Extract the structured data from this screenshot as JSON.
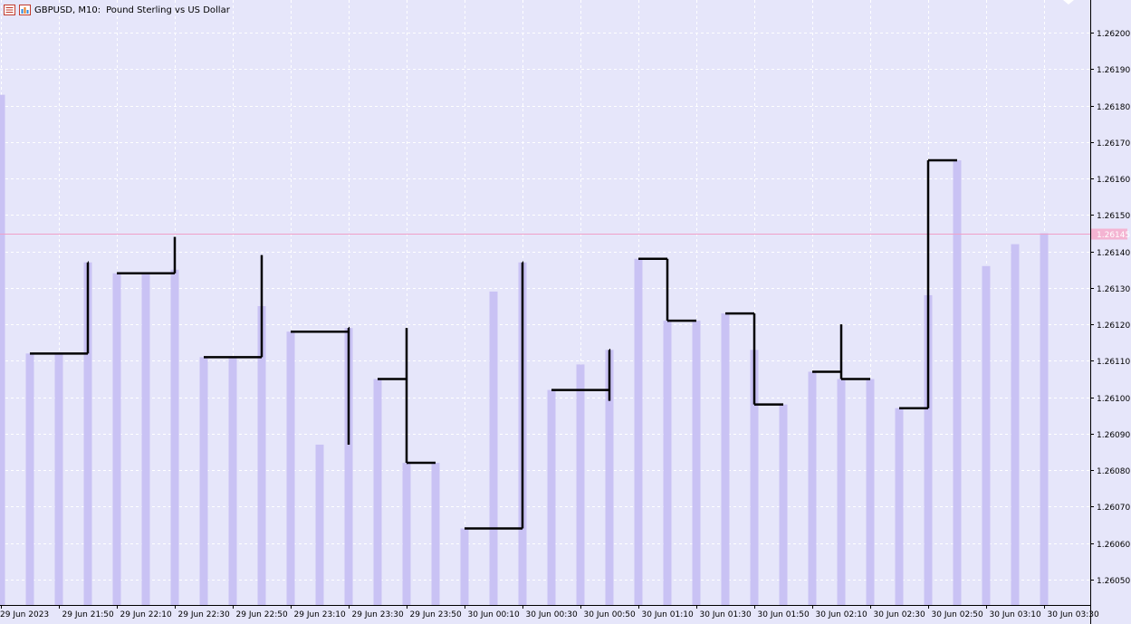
{
  "window": {
    "symbol_label": "GBPUSD, M10:",
    "description": "Pound Sterling vs US Dollar",
    "icons": [
      "list-icon",
      "chart-icon"
    ]
  },
  "colors": {
    "background": "#e6e6fa",
    "grid": "#ffffff",
    "volume_bar": "#c9c2f4",
    "step_line": "#000000",
    "bid_line": "#f0a0c8",
    "bid_label_bg": "#f4b4d2",
    "axis": "#000000"
  },
  "chart_data": {
    "type": "line",
    "title": "GBPUSD, M10:  Pound Sterling vs US Dollar",
    "ylim": [
      1.26043,
      1.26209
    ],
    "y_ticks": [
      "1.26200",
      "1.26190",
      "1.26180",
      "1.26170",
      "1.26160",
      "1.26150",
      "1.26140",
      "1.26130",
      "1.26120",
      "1.26110",
      "1.26100",
      "1.26090",
      "1.26080",
      "1.26070",
      "1.26060",
      "1.26050"
    ],
    "current_price": "1.26145",
    "x_labels": [
      "29 Jun 2023",
      "29 Jun 21:50",
      "29 Jun 22:10",
      "29 Jun 22:30",
      "29 Jun 22:50",
      "29 Jun 23:10",
      "29 Jun 23:30",
      "29 Jun 23:50",
      "30 Jun 00:10",
      "30 Jun 00:30",
      "30 Jun 00:50",
      "30 Jun 01:10",
      "30 Jun 01:30",
      "30 Jun 01:50",
      "30 Jun 02:10",
      "30 Jun 02:30",
      "30 Jun 02:50",
      "30 Jun 03:10",
      "30 Jun 03:30"
    ],
    "bars": [
      1.26183,
      1.26112,
      1.26112,
      1.26137,
      1.26134,
      1.26134,
      1.26135,
      1.26111,
      1.26111,
      1.26125,
      1.26118,
      1.26087,
      1.26119,
      1.26105,
      1.26082,
      1.26082,
      1.26064,
      1.26129,
      1.26137,
      1.26102,
      1.26109,
      1.26113,
      1.26138,
      1.26121,
      1.26121,
      1.26123,
      1.26113,
      1.26098,
      1.26107,
      1.26105,
      1.26105,
      1.26097,
      1.26128,
      1.26165,
      1.26136,
      1.26142,
      1.26145
    ],
    "step_segments": [
      {
        "from": 1,
        "to": 2,
        "open": 1.26112,
        "close": 1.26112,
        "high": 1.26112,
        "low": 1.26112
      },
      {
        "from": 2,
        "to": 3,
        "open": 1.26112,
        "close": 1.26137,
        "high": 1.26137,
        "low": 1.26112
      },
      {
        "from": 4,
        "to": 5,
        "open": 1.26134,
        "close": 1.26134,
        "high": 1.26134,
        "low": 1.26134
      },
      {
        "from": 5,
        "to": 6,
        "open": 1.26134,
        "close": 1.26135,
        "high": 1.26144,
        "low": 1.26134
      },
      {
        "from": 7,
        "to": 8,
        "open": 1.26111,
        "close": 1.26111,
        "high": 1.26111,
        "low": 1.26111
      },
      {
        "from": 8,
        "to": 9,
        "open": 1.26111,
        "close": 1.26125,
        "high": 1.26139,
        "low": 1.26111
      },
      {
        "from": 10,
        "to": 11,
        "open": 1.26118,
        "close": 1.26118,
        "high": 1.26118,
        "low": 1.26118
      },
      {
        "from": 11,
        "to": 12,
        "open": 1.26118,
        "close": 1.26119,
        "high": 1.26119,
        "low": 1.26087
      },
      {
        "from": 13,
        "to": 14,
        "open": 1.26105,
        "close": 1.26082,
        "high": 1.26119,
        "low": 1.26082
      },
      {
        "from": 14,
        "to": 15,
        "open": 1.26082,
        "close": 1.26082,
        "high": 1.26082,
        "low": 1.26082
      },
      {
        "from": 16,
        "to": 17,
        "open": 1.26064,
        "close": 1.26064,
        "high": 1.26064,
        "low": 1.26064
      },
      {
        "from": 17,
        "to": 18,
        "open": 1.26064,
        "close": 1.26137,
        "high": 1.26137,
        "low": 1.26064
      },
      {
        "from": 19,
        "to": 20,
        "open": 1.26102,
        "close": 1.26102,
        "high": 1.26102,
        "low": 1.26102
      },
      {
        "from": 20,
        "to": 21,
        "open": 1.26102,
        "close": 1.26113,
        "high": 1.26113,
        "low": 1.26099
      },
      {
        "from": 22,
        "to": 23,
        "open": 1.26138,
        "close": 1.26121,
        "high": 1.26138,
        "low": 1.26121
      },
      {
        "from": 23,
        "to": 24,
        "open": 1.26121,
        "close": 1.26121,
        "high": 1.26121,
        "low": 1.26121
      },
      {
        "from": 25,
        "to": 26,
        "open": 1.26123,
        "close": 1.26098,
        "high": 1.26123,
        "low": 1.26098
      },
      {
        "from": 26,
        "to": 27,
        "open": 1.26098,
        "close": 1.26098,
        "high": 1.26098,
        "low": 1.26098
      },
      {
        "from": 28,
        "to": 29,
        "open": 1.26107,
        "close": 1.26105,
        "high": 1.2612,
        "low": 1.26105
      },
      {
        "from": 29,
        "to": 30,
        "open": 1.26105,
        "close": 1.26105,
        "high": 1.26105,
        "low": 1.26105
      },
      {
        "from": 31,
        "to": 32,
        "open": 1.26097,
        "close": 1.26165,
        "high": 1.26165,
        "low": 1.26097
      },
      {
        "from": 32,
        "to": 33,
        "open": 1.26165,
        "close": 1.26165,
        "high": 1.26165,
        "low": 1.26165
      }
    ],
    "grid": true
  }
}
